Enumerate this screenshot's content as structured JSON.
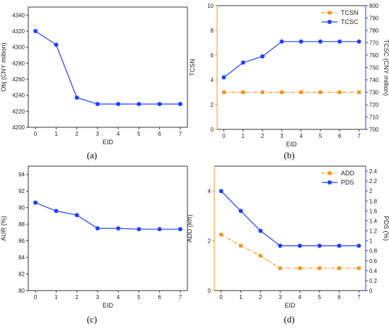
{
  "colors": {
    "orange": "#f7931e",
    "blue": "#1f3fff",
    "axis": "#333333"
  },
  "chart_data": [
    {
      "id": "a",
      "type": "line",
      "panel_label": "(a)",
      "xlabel": "EID",
      "ylabel": "Obj (CNY million)",
      "x": [
        0,
        1,
        2,
        3,
        4,
        5,
        6,
        7
      ],
      "xticks": [
        "0",
        "1",
        "2",
        "3",
        "4",
        "5",
        "6",
        "7"
      ],
      "ylim": [
        4200,
        4350
      ],
      "yticks": [
        4200,
        4220,
        4240,
        4260,
        4280,
        4300,
        4320,
        4340
      ],
      "series": [
        {
          "values": [
            4320,
            4303,
            4237,
            4229,
            4229,
            4229,
            4229,
            4229
          ],
          "color": "#1f3fff",
          "marker": "circle",
          "dash": false
        }
      ]
    },
    {
      "id": "b",
      "type": "line",
      "panel_label": "(b)",
      "xlabel": "EID",
      "ylabel": "TCSN",
      "ylabel_right": "TCSC (CNY million)",
      "x": [
        0,
        1,
        2,
        3,
        4,
        5,
        6,
        7
      ],
      "xticks": [
        "0",
        "1",
        "2",
        "3",
        "4",
        "5",
        "6",
        "7"
      ],
      "ylim": [
        0,
        10
      ],
      "yticks": [
        0,
        2,
        4,
        6,
        8,
        10
      ],
      "ylim_right": [
        700,
        800
      ],
      "yticks_right": [
        700,
        710,
        720,
        730,
        740,
        750,
        760,
        770,
        780,
        790,
        800
      ],
      "legend": "top-right",
      "series": [
        {
          "name": "TCSN",
          "axis": "left",
          "values": [
            3,
            3,
            3,
            3,
            3,
            3,
            3,
            3
          ],
          "color": "#f7931e",
          "marker": "square",
          "dash": true
        },
        {
          "name": "TCSC",
          "axis": "right",
          "values": [
            742,
            754,
            759,
            771,
            771,
            771,
            771,
            771
          ],
          "color": "#1f3fff",
          "marker": "circle",
          "dash": false
        }
      ]
    },
    {
      "id": "c",
      "type": "line",
      "panel_label": "(c)",
      "xlabel": "EID",
      "ylabel": "AUR (%)",
      "x": [
        0,
        1,
        2,
        3,
        4,
        5,
        6,
        7
      ],
      "xticks": [
        "0",
        "1",
        "2",
        "3",
        "4",
        "5",
        "6",
        "7"
      ],
      "ylim": [
        80,
        95
      ],
      "yticks": [
        80,
        82,
        84,
        86,
        88,
        90,
        92,
        94
      ],
      "series": [
        {
          "values": [
            90.6,
            89.6,
            89.1,
            87.5,
            87.5,
            87.4,
            87.4,
            87.4
          ],
          "color": "#1f3fff",
          "marker": "circle",
          "dash": false
        }
      ]
    },
    {
      "id": "d",
      "type": "line",
      "panel_label": "(d)",
      "xlabel": "EID",
      "ylabel": "ADD (km)",
      "ylabel_right": "PDS (%)",
      "x": [
        0,
        1,
        2,
        3,
        4,
        5,
        6,
        7
      ],
      "xticks": [
        "0",
        "1",
        "2",
        "3",
        "4",
        "5",
        "6",
        "7"
      ],
      "ylim": [
        0,
        5
      ],
      "yticks": [
        0,
        2,
        4
      ],
      "ylim_right": [
        0,
        2.5
      ],
      "yticks_right": [
        0.0,
        0.2,
        0.4,
        0.6,
        0.8,
        1.0,
        1.2,
        1.4,
        1.6,
        1.8,
        2.0,
        2.2,
        2.4
      ],
      "legend": "top-right",
      "series": [
        {
          "name": "ADD",
          "axis": "left",
          "values": [
            2.25,
            1.8,
            1.4,
            0.9,
            0.9,
            0.9,
            0.9,
            0.9
          ],
          "color": "#f7931e",
          "marker": "square",
          "dash": true
        },
        {
          "name": "PDS",
          "axis": "right",
          "values": [
            2.0,
            1.6,
            1.2,
            0.9,
            0.9,
            0.9,
            0.9,
            0.9
          ],
          "color": "#1f3fff",
          "marker": "circle",
          "dash": false
        }
      ]
    }
  ]
}
